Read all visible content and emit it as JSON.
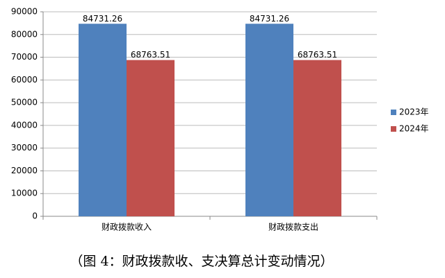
{
  "chart_data": {
    "type": "bar",
    "caption": "（图 4：财政拨款收、支决算总计变动情况）",
    "categories": [
      "财政拨款收入",
      "财政拨款支出"
    ],
    "series": [
      {
        "name": "2023年",
        "color": "#4f81bd",
        "values": [
          84731.26,
          84731.26
        ]
      },
      {
        "name": "2024年",
        "color": "#c0504d",
        "values": [
          68763.51,
          68763.51
        ]
      }
    ],
    "ylim": [
      0,
      90000
    ],
    "yticks": [
      0,
      10000,
      20000,
      30000,
      40000,
      50000,
      60000,
      70000,
      80000,
      90000
    ],
    "grid": true,
    "legend": "right",
    "data_labels": true
  }
}
